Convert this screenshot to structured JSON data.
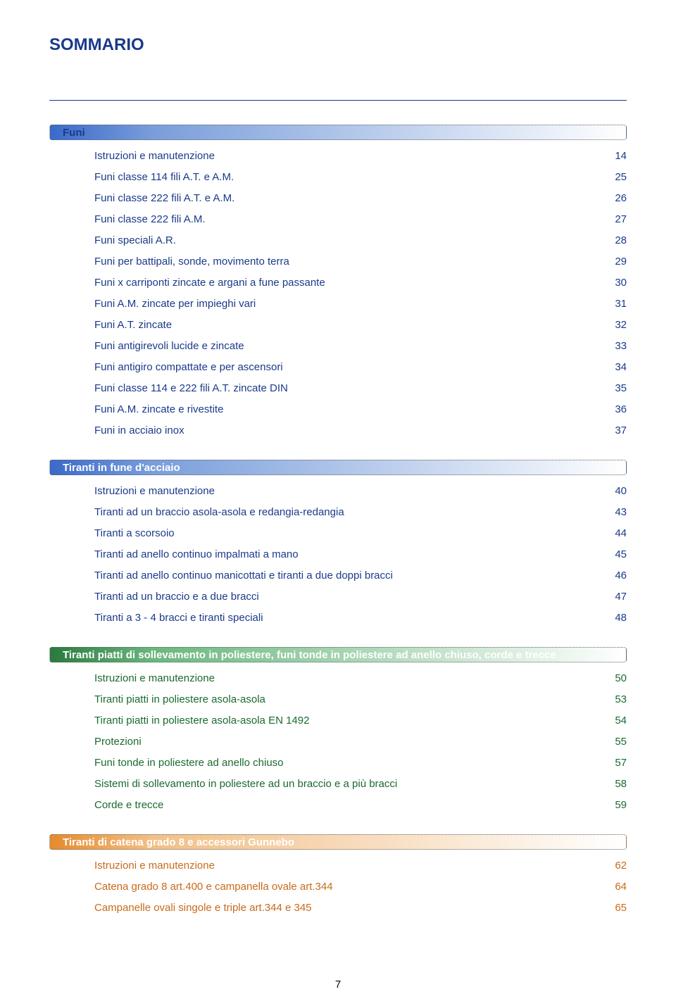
{
  "title": "SOMMARIO",
  "title_color": "#1a3a8a",
  "page_number": "7",
  "sections": [
    {
      "title": "Funi",
      "title_color": "#1a3a8a",
      "gradient_class": "sh-gradient-blue",
      "link_color": "#1a3a8a",
      "items": [
        {
          "label": "Istruzioni e manutenzione",
          "page": "14"
        },
        {
          "label": "Funi classe 114 fili A.T. e A.M.",
          "page": "25"
        },
        {
          "label": "Funi classe 222 fili A.T. e A.M.",
          "page": "26"
        },
        {
          "label": "Funi classe 222 fili A.M.",
          "page": "27"
        },
        {
          "label": "Funi speciali A.R.",
          "page": "28"
        },
        {
          "label": "Funi per battipali, sonde, movimento terra",
          "page": "29"
        },
        {
          "label": "Funi x carriponti zincate e argani a fune passante",
          "page": "30"
        },
        {
          "label": "Funi A.M. zincate per impieghi vari",
          "page": "31"
        },
        {
          "label": "Funi A.T. zincate",
          "page": "32"
        },
        {
          "label": "Funi antigirevoli lucide e zincate",
          "page": "33"
        },
        {
          "label": "Funi antigiro compattate e per ascensori",
          "page": "34"
        },
        {
          "label": "Funi classe 114 e 222 fili A.T. zincate DIN",
          "page": "35"
        },
        {
          "label": "Funi A.M. zincate e rivestite",
          "page": "36"
        },
        {
          "label": "Funi in acciaio inox",
          "page": "37"
        }
      ]
    },
    {
      "title": "Tiranti in fune d'acciaio",
      "title_color": "#ffffff",
      "gradient_class": "sh-gradient-blue",
      "link_color": "#1a3a8a",
      "items": [
        {
          "label": "Istruzioni e manutenzione",
          "page": "40"
        },
        {
          "label": "Tiranti ad un braccio asola-asola e redangia-redangia",
          "page": "43"
        },
        {
          "label": "Tiranti a scorsoio",
          "page": "44"
        },
        {
          "label": "Tiranti ad anello continuo impalmati a mano",
          "page": "45"
        },
        {
          "label": "Tiranti ad anello continuo manicottati e tiranti a due doppi bracci",
          "page": "46"
        },
        {
          "label": "Tiranti ad un braccio e a due bracci",
          "page": "47"
        },
        {
          "label": "Tiranti a 3 - 4 bracci e tiranti speciali",
          "page": "48"
        }
      ]
    },
    {
      "title": "Tiranti piatti di sollevamento in poliestere, funi tonde in poliestere ad anello chiuso, corde e trecce",
      "title_color": "#ffffff",
      "gradient_class": "sh-gradient-green",
      "link_color": "#1a6a2f",
      "items": [
        {
          "label": "Istruzioni e manutenzione",
          "page": "50"
        },
        {
          "label": "Tiranti piatti in poliestere asola-asola",
          "page": "53"
        },
        {
          "label": "Tiranti piatti in poliestere asola-asola EN 1492",
          "page": "54"
        },
        {
          "label": "Protezioni",
          "page": "55"
        },
        {
          "label": "Funi tonde in poliestere ad anello chiuso",
          "page": "57"
        },
        {
          "label": "Sistemi di sollevamento in poliestere ad un braccio e a più bracci",
          "page": "58"
        },
        {
          "label": "Corde e trecce",
          "page": "59"
        }
      ]
    },
    {
      "title": "Tiranti di catena grado 8 e accessori Gunnebo",
      "title_color": "#ffffff",
      "gradient_class": "sh-gradient-orange",
      "link_color": "#c96a1a",
      "items": [
        {
          "label": "Istruzioni e manutenzione",
          "page": "62"
        },
        {
          "label": "Catena grado 8 art.400 e campanella ovale art.344",
          "page": "64"
        },
        {
          "label": "Campanelle ovali singole e triple art.344 e 345",
          "page": "65"
        }
      ]
    }
  ]
}
